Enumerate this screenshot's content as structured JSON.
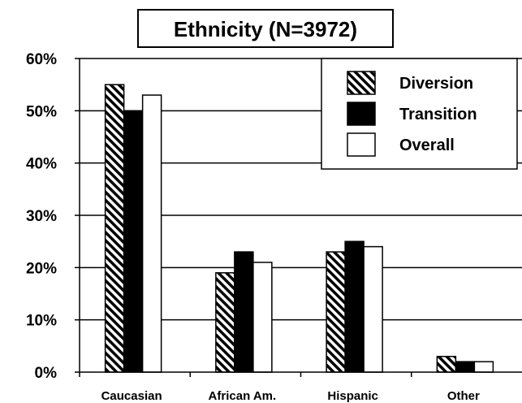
{
  "chart_data": {
    "type": "bar",
    "title": "Ethnicity (N=3972)",
    "categories": [
      "Caucasian",
      "African Am.",
      "Hispanic",
      "Other"
    ],
    "series": [
      {
        "name": "Diversion",
        "values": [
          55,
          19,
          23,
          3
        ],
        "fill": "hatch"
      },
      {
        "name": "Transition",
        "values": [
          50,
          23,
          25,
          2
        ],
        "fill": "#000000"
      },
      {
        "name": "Overall",
        "values": [
          53,
          21,
          24,
          2
        ],
        "fill": "#ffffff"
      }
    ],
    "y_ticks": [
      "0%",
      "10%",
      "20%",
      "30%",
      "40%",
      "50%",
      "60%"
    ],
    "ylim": [
      0,
      60
    ],
    "xlabel": "",
    "ylabel": "",
    "grid": true,
    "legend_position": "top-right"
  }
}
